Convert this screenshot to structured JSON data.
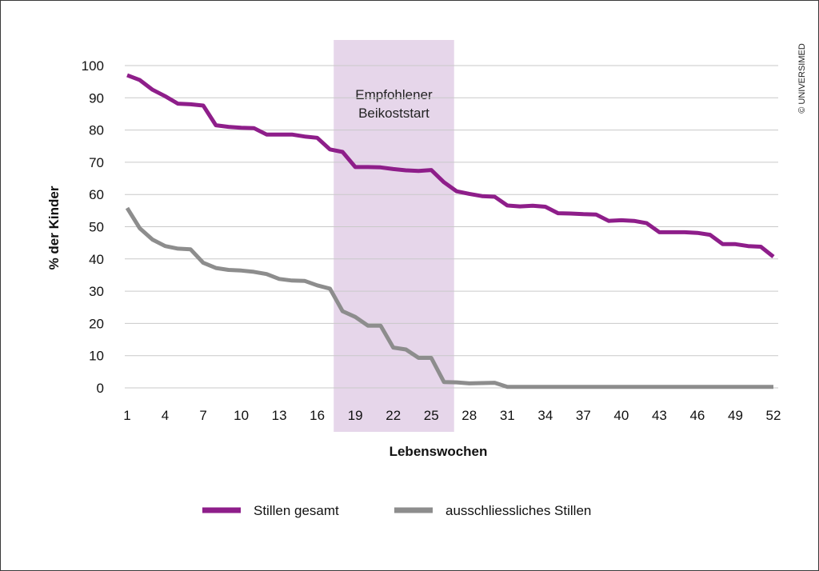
{
  "chart_data": {
    "type": "line",
    "title": "",
    "xlabel": "Lebenswochen",
    "ylabel": "% der Kinder",
    "xlim": [
      1,
      52
    ],
    "ylim": [
      0,
      100
    ],
    "x_ticks": [
      1,
      4,
      7,
      10,
      13,
      16,
      19,
      22,
      25,
      28,
      31,
      34,
      37,
      40,
      43,
      46,
      49,
      52
    ],
    "y_ticks": [
      0,
      10,
      20,
      30,
      40,
      50,
      60,
      70,
      80,
      90,
      100
    ],
    "grid": "horizontal",
    "highlight_band": {
      "x_start": 17.3,
      "x_end": 26.8,
      "label_line1": "Empfohlener",
      "label_line2": "Beikoststart",
      "color": "#e6d6ea"
    },
    "x": [
      1,
      2,
      3,
      4,
      5,
      6,
      7,
      8,
      9,
      10,
      11,
      12,
      13,
      14,
      15,
      16,
      17,
      18,
      19,
      20,
      21,
      22,
      23,
      24,
      25,
      26,
      27,
      28,
      29,
      30,
      31,
      32,
      33,
      34,
      35,
      36,
      37,
      38,
      39,
      40,
      41,
      42,
      43,
      44,
      45,
      46,
      47,
      48,
      49,
      50,
      51,
      52
    ],
    "series": [
      {
        "name": "Stillen gesamt",
        "color": "#8e1e8a",
        "values": [
          97,
          95.5,
          92.5,
          90.5,
          88.2,
          88,
          87.6,
          81.5,
          81,
          80.7,
          80.6,
          78.6,
          78.6,
          78.6,
          78,
          77.6,
          74,
          73.2,
          68.5,
          68.5,
          68.4,
          67.9,
          67.5,
          67.3,
          67.6,
          63.8,
          61,
          60.2,
          59.5,
          59.3,
          56.6,
          56.3,
          56.5,
          56.2,
          54.2,
          54.1,
          53.9,
          53.8,
          51.8,
          52,
          51.8,
          51.1,
          48.3,
          48.3,
          48.3,
          48.1,
          47.5,
          44.6,
          44.6,
          44,
          43.8,
          40.7
        ]
      },
      {
        "name": "ausschliessliches Stillen",
        "color": "#8d8d8d",
        "values": [
          55.8,
          49.5,
          46,
          44,
          43.2,
          43,
          38.8,
          37.2,
          36.6,
          36.4,
          36,
          35.3,
          33.8,
          33.3,
          33.2,
          31.8,
          30.8,
          23.8,
          22,
          19.3,
          19.3,
          12.5,
          11.9,
          9.3,
          9.3,
          1.8,
          1.7,
          1.4,
          1.5,
          1.6,
          0.3,
          0.3,
          0.3,
          0.3,
          0.3,
          0.3,
          0.3,
          0.3,
          0.3,
          0.3,
          0.3,
          0.3,
          0.3,
          0.3,
          0.3,
          0.3,
          0.3,
          0.3,
          0.3,
          0.3,
          0.3,
          0.3
        ]
      }
    ],
    "legend": {
      "position": "bottom-center",
      "items": [
        "Stillen gesamt",
        "ausschliessliches Stillen"
      ]
    }
  },
  "copyright": "© UNIVERSIMED"
}
